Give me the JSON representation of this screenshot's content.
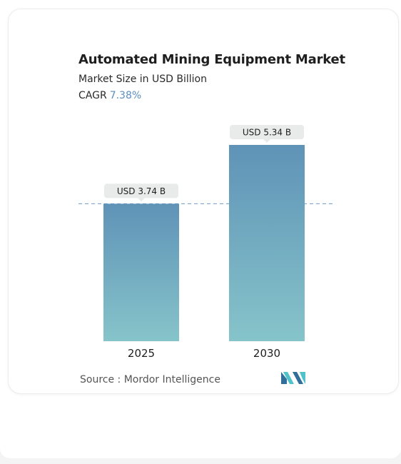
{
  "title": "Automated Mining Equipment Market",
  "subtitle": "Market Size in USD Billion",
  "cagr": {
    "label": "CAGR",
    "value": "7.38%"
  },
  "source": "Source :  Mordor Intelligence",
  "colors": {
    "bar_top": "#5f93b7",
    "bar_bottom": "#86c4ca",
    "dashed_line": "#6f9cc4",
    "label_bg": "#e9eaea",
    "cagr_accent": "#5b8ec2",
    "logo_dark": "#2f6f9a",
    "logo_light": "#4fc3c9"
  },
  "logo": {
    "icon": "mordor-intelligence-logo-icon"
  },
  "chart_data": {
    "type": "bar",
    "categories": [
      "2025",
      "2030"
    ],
    "values": [
      3.74,
      5.34
    ],
    "data_labels": [
      "USD 3.74 B",
      "USD 5.34 B"
    ],
    "title": "Automated Mining Equipment Market",
    "subtitle": "Market Size in USD Billion",
    "ylim": [
      0,
      5.34
    ],
    "grid": false,
    "reference_line": 3.74
  }
}
